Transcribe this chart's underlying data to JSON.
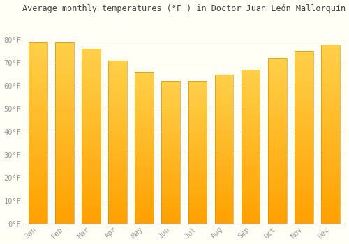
{
  "title": "Average monthly temperatures (°F ) in Doctor Juan León Mallorquín",
  "months": [
    "Jan",
    "Feb",
    "Mar",
    "Apr",
    "May",
    "Jun",
    "Jul",
    "Aug",
    "Sep",
    "Oct",
    "Nov",
    "Dec"
  ],
  "values": [
    79,
    79,
    76,
    71,
    66,
    62,
    62,
    65,
    67,
    72,
    75,
    78
  ],
  "bar_color_light": "#FFD04A",
  "bar_color_dark": "#FFA000",
  "bar_edge_color": "#CC8800",
  "background_color": "#FFFFF5",
  "grid_color": "#CCCCBB",
  "tick_color": "#999999",
  "title_color": "#444444",
  "ylim": [
    0,
    90
  ],
  "yticks": [
    0,
    10,
    20,
    30,
    40,
    50,
    60,
    70,
    80
  ],
  "ytick_labels": [
    "0°F",
    "10°F",
    "20°F",
    "30°F",
    "40°F",
    "50°F",
    "60°F",
    "70°F",
    "80°F"
  ],
  "title_fontsize": 8.5,
  "tick_fontsize": 7.5,
  "bar_width": 0.7,
  "figsize": [
    5.0,
    3.5
  ],
  "dpi": 100
}
